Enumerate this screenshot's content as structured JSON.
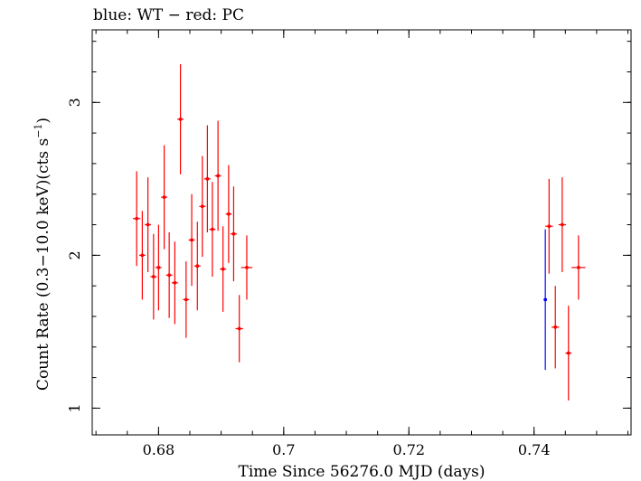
{
  "chart_data": {
    "type": "scatter",
    "title": "blue: WT − red: PC",
    "xlabel": "Time Since 56276.0 MJD (days)",
    "ylabel_main": "Count Rate (0.3−10.0 keV)(cts s",
    "ylabel_sup": "−1",
    "ylabel_end": ")",
    "xlim": [
      0.6694,
      0.7555
    ],
    "ylim": [
      0.825,
      3.475
    ],
    "x_ticks": [
      {
        "value": 0.68,
        "label": "0.68"
      },
      {
        "value": 0.7,
        "label": "0.7"
      },
      {
        "value": 0.72,
        "label": "0.72"
      },
      {
        "value": 0.74,
        "label": "0.74"
      }
    ],
    "y_ticks": [
      {
        "value": 1,
        "label": "1"
      },
      {
        "value": 2,
        "label": "2"
      },
      {
        "value": 3,
        "label": "3"
      }
    ],
    "x_minor_step": 0.005,
    "y_minor_step": 0.2,
    "series": [
      {
        "name": "WT",
        "color": "#0000ff",
        "points": [
          {
            "x": 0.7418,
            "xerr": 0.0001,
            "y": 1.71,
            "yerr": 0.46
          }
        ]
      },
      {
        "name": "PC",
        "color": "#ff0000",
        "points": [
          {
            "x": 0.6765,
            "xerr": 0.0006,
            "y": 2.24,
            "yerr": 0.31
          },
          {
            "x": 0.6774,
            "xerr": 0.0005,
            "y": 2.0,
            "yerr": 0.29
          },
          {
            "x": 0.6783,
            "xerr": 0.0005,
            "y": 2.2,
            "yerr": 0.31
          },
          {
            "x": 0.6792,
            "xerr": 0.0005,
            "y": 1.86,
            "yerr": 0.28
          },
          {
            "x": 0.68,
            "xerr": 0.0005,
            "y": 1.92,
            "yerr": 0.28
          },
          {
            "x": 0.6809,
            "xerr": 0.0005,
            "y": 2.38,
            "yerr": 0.34
          },
          {
            "x": 0.6817,
            "xerr": 0.0005,
            "y": 1.87,
            "yerr": 0.28
          },
          {
            "x": 0.6826,
            "xerr": 0.0005,
            "y": 1.82,
            "yerr": 0.27
          },
          {
            "x": 0.6835,
            "xerr": 0.0005,
            "y": 2.89,
            "yerr": 0.36
          },
          {
            "x": 0.6844,
            "xerr": 0.0005,
            "y": 1.71,
            "yerr": 0.25
          },
          {
            "x": 0.6853,
            "xerr": 0.0005,
            "y": 2.1,
            "yerr": 0.3
          },
          {
            "x": 0.6862,
            "xerr": 0.0005,
            "y": 1.93,
            "yerr": 0.29
          },
          {
            "x": 0.687,
            "xerr": 0.0005,
            "y": 2.32,
            "yerr": 0.33
          },
          {
            "x": 0.6878,
            "xerr": 0.0005,
            "y": 2.5,
            "yerr": 0.35
          },
          {
            "x": 0.6886,
            "xerr": 0.0005,
            "y": 2.17,
            "yerr": 0.31
          },
          {
            "x": 0.6895,
            "xerr": 0.0005,
            "y": 2.52,
            "yerr": 0.36
          },
          {
            "x": 0.6903,
            "xerr": 0.0005,
            "y": 1.91,
            "yerr": 0.28
          },
          {
            "x": 0.6912,
            "xerr": 0.0005,
            "y": 2.27,
            "yerr": 0.32
          },
          {
            "x": 0.692,
            "xerr": 0.0005,
            "y": 2.14,
            "yerr": 0.31
          },
          {
            "x": 0.6929,
            "xerr": 0.0006,
            "y": 1.52,
            "yerr": 0.22
          },
          {
            "x": 0.6941,
            "xerr": 0.0009,
            "y": 1.92,
            "yerr": 0.21
          },
          {
            "x": 0.7424,
            "xerr": 0.0006,
            "y": 2.19,
            "yerr": 0.31
          },
          {
            "x": 0.7434,
            "xerr": 0.0006,
            "y": 1.53,
            "yerr": 0.27
          },
          {
            "x": 0.7445,
            "xerr": 0.0006,
            "y": 2.2,
            "yerr": 0.31
          },
          {
            "x": 0.7455,
            "xerr": 0.0005,
            "y": 1.36,
            "yerr": 0.31
          },
          {
            "x": 0.7471,
            "xerr": 0.0011,
            "y": 1.92,
            "yerr": 0.21
          }
        ]
      }
    ]
  }
}
